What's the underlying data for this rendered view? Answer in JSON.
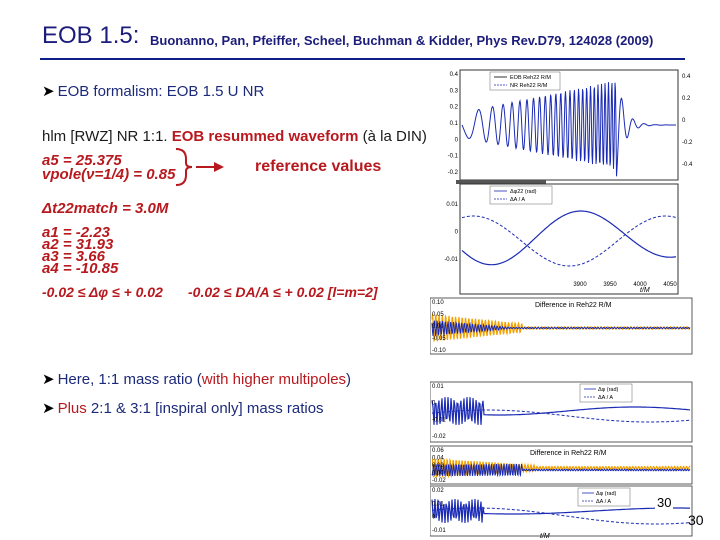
{
  "title": {
    "main": "EOB 1.5:",
    "reference": "Buonanno, Pan, Pfeiffer, Scheel, Buchman & Kidder, Phys Rev.D79, 124028 (2009)"
  },
  "bullets": {
    "b1": "EOB formalism: EOB 1.5 U NR",
    "b2_prefix": "Here, 1:1 mass ratio (",
    "b2_highlight": "with higher multipoles",
    "b2_suffix": ")",
    "b3_highlight": "Plus",
    "b3_rest": " 2:1 & 3:1 [inspiral only]  mass ratios",
    "arrow": "Ø"
  },
  "hlm_line": {
    "prefix": "hlm [RWZ] NR 1:1. ",
    "highlight": "EOB resummed waveform",
    "suffix": " (à la DIN)"
  },
  "params": {
    "a5": "a5         =  25.375",
    "vpole": "vpole(ν=1/4) = 0.85",
    "reference_values": "reference values",
    "dt": "Δt22match = 3.0M",
    "a1": "a1 = -2.23",
    "a2": "a2 = 31.93",
    "a3": "a3 = 3.66",
    "a4": "a4 = -10.85",
    "bound_phase": "-0.02 ≤ Δφ ≤ + 0.02",
    "bound_amp": "-0.02 ≤ DA/A ≤ + 0.02 [l=m=2]"
  },
  "page_number": "30",
  "page_number_overlay": "30",
  "plots": {
    "p1": {
      "legend": [
        "EOB Reh22 R/M",
        "NR Reh22 R/M"
      ],
      "left_ticks": [
        "0.4",
        "0.3",
        "0.2",
        "0.1",
        "0",
        "-0.1",
        "-0.2"
      ],
      "right_ticks": [
        "0.4",
        "0.2",
        "0",
        "-0.2",
        "-0.4"
      ],
      "x_ticks": [
        "3900",
        "3950",
        "4000",
        "4050"
      ]
    },
    "p2": {
      "legend": [
        "Δφ22 (rad)",
        "ΔA / A"
      ],
      "left_ticks": [
        "0.01",
        "0",
        "-0.01"
      ],
      "x_ticks": [
        "3900",
        "3950",
        "4000",
        "4050"
      ],
      "xlabel": "t/M"
    },
    "p3": {
      "title": "Difference in Reh22 R/M",
      "y_ticks": [
        "0.10",
        "0.05",
        "0.00",
        "-0.05",
        "-0.10"
      ]
    },
    "p4": {
      "legend": [
        "Δφ (rad)",
        "ΔA / A"
      ],
      "y_ticks": [
        "0.01",
        "0",
        "-0.01",
        "-0.02"
      ]
    },
    "p5": {
      "title": "Difference in Reh22 R/M",
      "y_ticks": [
        "0.06",
        "0.04",
        "0.02",
        "0.00",
        "-0.02"
      ]
    },
    "p6": {
      "legend": [
        "Δφ (rad)",
        "ΔA / A"
      ],
      "y_ticks": [
        "0.02",
        "0.01",
        "0",
        "-0.01"
      ],
      "xlabel": "t/M"
    }
  },
  "colors": {
    "title": "#1c1c7a",
    "accent_red": "#b8191e",
    "rule": "#0f1f8a",
    "curve_blue": "#1b2bb5",
    "curve_orange": "#f2a100"
  }
}
